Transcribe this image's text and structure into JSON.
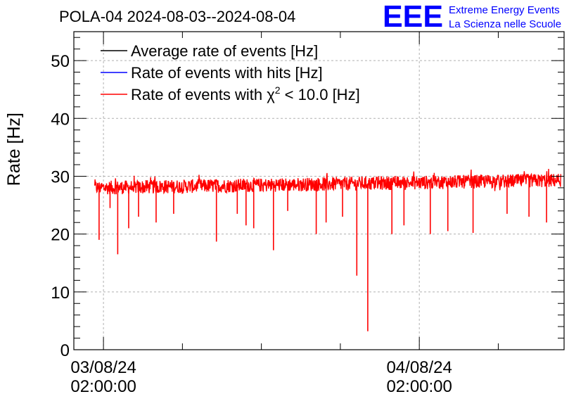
{
  "header": {
    "title": "POLA-04 2024-08-03--2024-08-04",
    "logo_text": "EEE",
    "logo_line1": "Extreme Energy Events",
    "logo_line2": "La Scienza nelle Scuole"
  },
  "colors": {
    "average": "#000000",
    "hits": "#0000ff",
    "chi2": "#ff0000",
    "logo": "#0000ff",
    "grid": "#b0b0b0"
  },
  "chart_data": {
    "type": "line",
    "title": "POLA-04 2024-08-03--2024-08-04",
    "ylabel": "Rate [Hz]",
    "xlabel": "",
    "ylim": [
      0,
      55
    ],
    "y_ticks": [
      0,
      10,
      20,
      30,
      40,
      50
    ],
    "x_range_hours_axis": [
      "2024-08-02 23:45",
      "2024-08-04 13:00"
    ],
    "x_tick_labels": [
      {
        "date": "03/08/24",
        "time": "02:00:00",
        "at": "2024-08-03 02:00"
      },
      {
        "date": "04/08/24",
        "time": "02:00:00",
        "at": "2024-08-04 02:00"
      }
    ],
    "grid": true,
    "legend_position": "top-left",
    "legend": [
      {
        "label": "Average rate of events [Hz]",
        "series": "average"
      },
      {
        "label": "Rate of events with hits [Hz]",
        "series": "hits"
      },
      {
        "label_pre": "Rate of events with χ",
        "label_sup": "2",
        "label_post": " < 10.0 [Hz]",
        "series": "chi2"
      }
    ],
    "series": [
      {
        "key": "chi2",
        "description_values": "Rate approximately 28.5 Hz throughout the interval, slowly rising to about 29.5 Hz at the end, with noise of about ±1.5 Hz and occasional dips.",
        "x_start": "2024-08-03 01:20",
        "x_end": "2024-08-04 12:45",
        "baseline_start": 28.0,
        "baseline_end": 29.3,
        "dips": [
          {
            "x": "2024-08-03 01:40",
            "y": 19.0
          },
          {
            "x": "2024-08-03 02:30",
            "y": 24.5
          },
          {
            "x": "2024-08-03 03:05",
            "y": 16.5
          },
          {
            "x": "2024-08-03 03:55",
            "y": 21.0
          },
          {
            "x": "2024-08-03 04:40",
            "y": 23.0
          },
          {
            "x": "2024-08-03 06:00",
            "y": 22.0
          },
          {
            "x": "2024-08-03 07:20",
            "y": 23.5
          },
          {
            "x": "2024-08-03 10:35",
            "y": 18.7
          },
          {
            "x": "2024-08-03 12:10",
            "y": 23.5
          },
          {
            "x": "2024-08-03 12:50",
            "y": 21.5
          },
          {
            "x": "2024-08-03 13:25",
            "y": 21.0
          },
          {
            "x": "2024-08-03 14:55",
            "y": 17.2
          },
          {
            "x": "2024-08-03 16:00",
            "y": 24.0
          },
          {
            "x": "2024-08-03 18:10",
            "y": 20.0
          },
          {
            "x": "2024-08-03 18:55",
            "y": 22.0
          },
          {
            "x": "2024-08-03 20:10",
            "y": 23.0
          },
          {
            "x": "2024-08-03 21:15",
            "y": 12.8
          },
          {
            "x": "2024-08-03 22:05",
            "y": 3.2
          },
          {
            "x": "2024-08-03 23:55",
            "y": 20.0
          },
          {
            "x": "2024-08-04 00:50",
            "y": 21.5
          },
          {
            "x": "2024-08-04 02:50",
            "y": 20.0
          },
          {
            "x": "2024-08-04 04:10",
            "y": 20.5
          },
          {
            "x": "2024-08-04 06:05",
            "y": 20.2
          },
          {
            "x": "2024-08-04 08:40",
            "y": 23.5
          },
          {
            "x": "2024-08-04 10:20",
            "y": 23.0
          },
          {
            "x": "2024-08-04 11:40",
            "y": 22.0
          }
        ]
      }
    ]
  }
}
